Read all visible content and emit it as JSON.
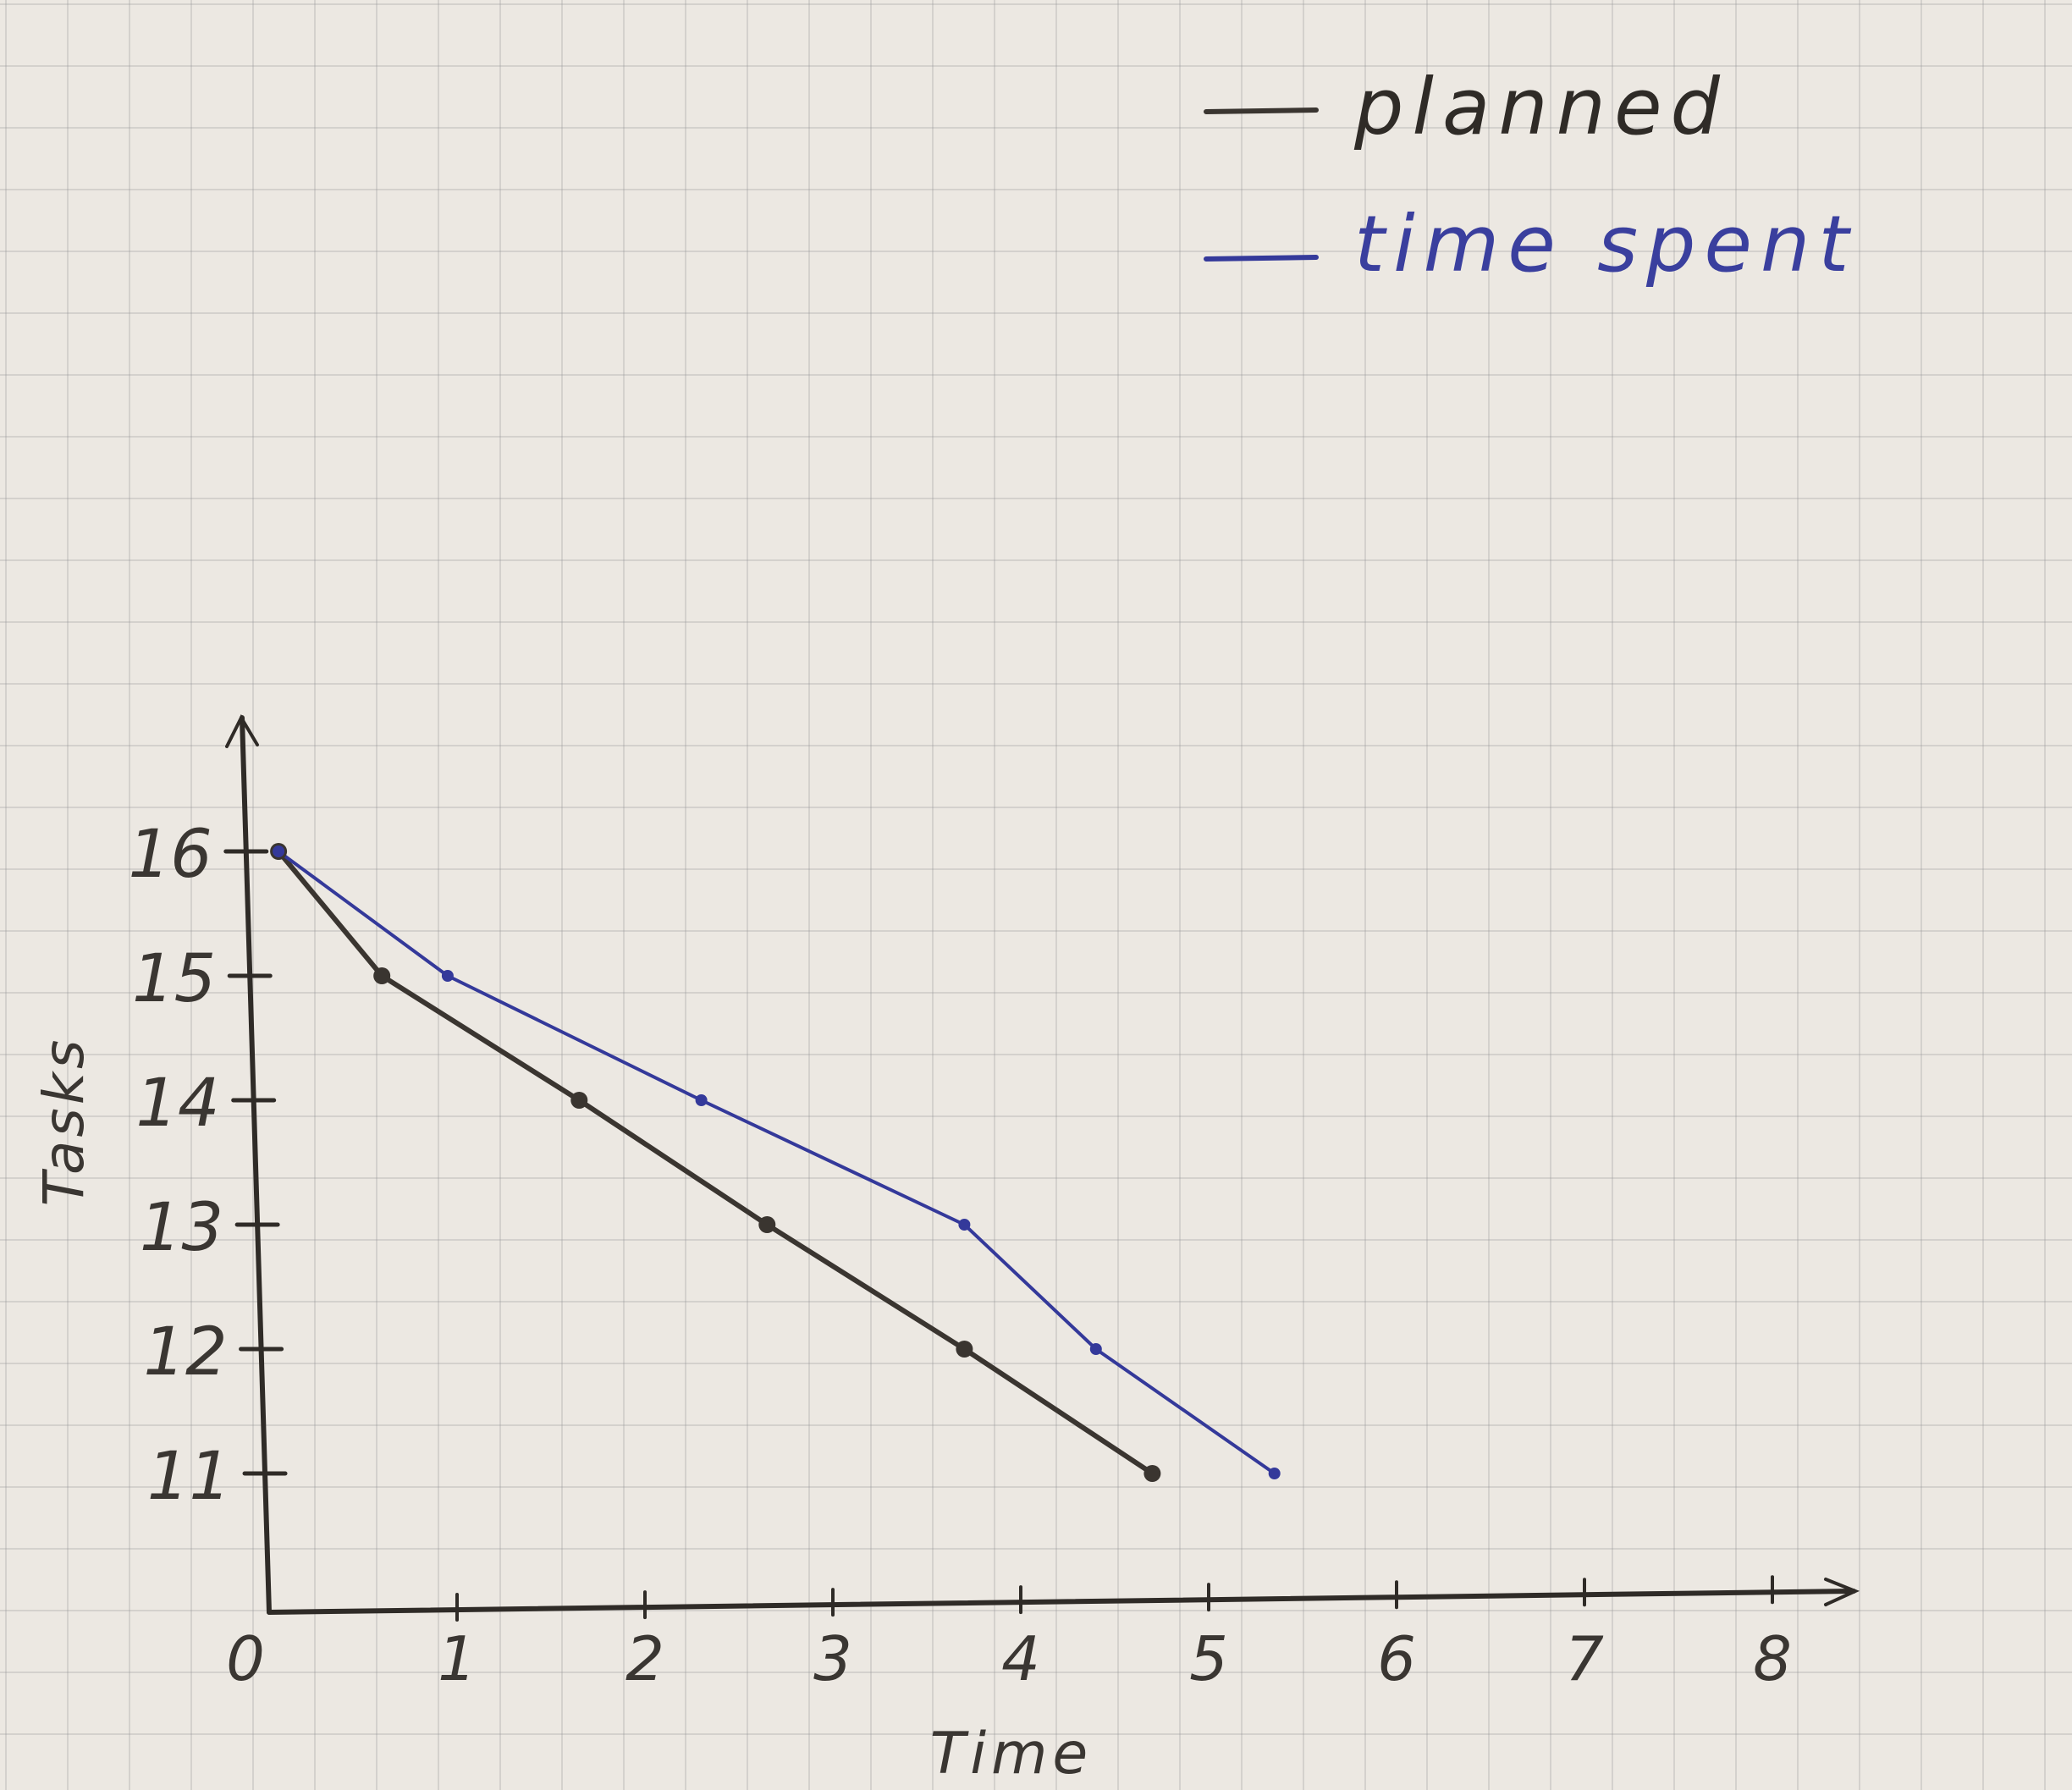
{
  "chart_data": {
    "type": "line",
    "title": "",
    "xlabel": "Time",
    "ylabel": "Tasks",
    "x_ticks": [
      "0",
      "1",
      "2",
      "3",
      "4",
      "5",
      "6",
      "7",
      "8"
    ],
    "y_ticks": [
      "11",
      "12",
      "13",
      "14",
      "15",
      "16"
    ],
    "xlim": [
      0,
      8
    ],
    "ylim": [
      10,
      17
    ],
    "grid": true,
    "legend_position": "top-right",
    "series": [
      {
        "name": "planned",
        "color": "#3a3530",
        "points": [
          {
            "x": 0.05,
            "y": 16
          },
          {
            "x": 0.6,
            "y": 15
          },
          {
            "x": 1.65,
            "y": 14
          },
          {
            "x": 2.65,
            "y": 13
          },
          {
            "x": 3.7,
            "y": 12
          },
          {
            "x": 4.7,
            "y": 11
          }
        ]
      },
      {
        "name": "time spent",
        "color": "#34399a",
        "points": [
          {
            "x": 0.05,
            "y": 16
          },
          {
            "x": 0.95,
            "y": 15
          },
          {
            "x": 2.3,
            "y": 14
          },
          {
            "x": 3.7,
            "y": 13
          },
          {
            "x": 4.4,
            "y": 12
          },
          {
            "x": 5.35,
            "y": 11
          }
        ]
      }
    ]
  }
}
